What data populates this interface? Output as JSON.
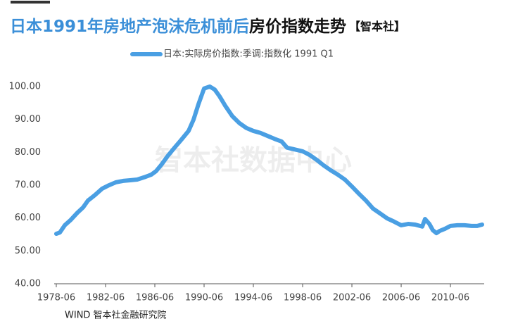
{
  "chart_data": {
    "type": "line",
    "title": "日本1991年房地产泡沫危机前后",
    "title_suffix": "房价指数走势",
    "brand": "【智本社】",
    "watermark": "智本社数据中心",
    "source": "WIND 智本社金融研究院",
    "series": [
      {
        "name": "日本:实际房价指数:季调:指数化 1991 Q1",
        "color": "#4a9fe3",
        "x": [
          1978.5,
          1978.79,
          1979.19,
          1979.64,
          1980.21,
          1980.67,
          1981.07,
          1981.64,
          1982.21,
          1982.79,
          1983.36,
          1983.93,
          1984.5,
          1985.07,
          1985.64,
          1986.21,
          1986.61,
          1987.07,
          1987.53,
          1988.1,
          1988.67,
          1989.24,
          1989.64,
          1990.04,
          1990.5,
          1990.96,
          1991.36,
          1991.76,
          1992.21,
          1992.79,
          1993.36,
          1993.93,
          1994.5,
          1995.07,
          1995.64,
          1996.21,
          1996.79,
          1997.24,
          1997.81,
          1998.5,
          1999.07,
          1999.64,
          2000.21,
          2000.79,
          2001.36,
          2001.93,
          2002.5,
          2003.07,
          2003.64,
          2004.21,
          2004.79,
          2005.36,
          2005.93,
          2006.5,
          2007.07,
          2007.64,
          2008.21,
          2008.44,
          2008.79,
          2009.07,
          2009.36,
          2009.64,
          2010.04,
          2010.5,
          2011.07,
          2011.64,
          2012.21,
          2012.67,
          2013.07
        ],
        "values": [
          55.2,
          55.6,
          57.8,
          59.3,
          61.6,
          63.2,
          65.3,
          67.0,
          68.9,
          70.0,
          70.9,
          71.3,
          71.5,
          71.7,
          72.4,
          73.2,
          74.3,
          76.4,
          78.8,
          81.4,
          83.9,
          86.5,
          89.9,
          94.6,
          99.4,
          100,
          99.1,
          97.0,
          94.2,
          91.0,
          88.9,
          87.4,
          86.5,
          85.9,
          85.0,
          84.1,
          83.3,
          81.4,
          80.9,
          80.3,
          79.2,
          77.7,
          76.0,
          74.5,
          73.2,
          71.7,
          69.6,
          67.4,
          65.3,
          62.9,
          61.4,
          59.9,
          58.9,
          57.8,
          58.2,
          58.0,
          57.4,
          59.7,
          58.2,
          56.3,
          55.4,
          56.1,
          56.7,
          57.6,
          57.8,
          57.8,
          57.6,
          57.6,
          58.0
        ]
      }
    ],
    "xlim": [
      1978.33,
      2013.24
    ],
    "xticks": [
      {
        "value": 1978.5,
        "label": "1978-06"
      },
      {
        "value": 1982.5,
        "label": "1982-06"
      },
      {
        "value": 1986.5,
        "label": "1986-06"
      },
      {
        "value": 1990.5,
        "label": "1990-06"
      },
      {
        "value": 1994.5,
        "label": "1994-06"
      },
      {
        "value": 1998.5,
        "label": "1998-06"
      },
      {
        "value": 2002.5,
        "label": "2002-06"
      },
      {
        "value": 2006.5,
        "label": "2006-06"
      },
      {
        "value": 2010.5,
        "label": "2010-06"
      }
    ],
    "ylim": [
      40,
      102
    ],
    "yticks": [
      {
        "value": 40,
        "label": "40.00"
      },
      {
        "value": 50,
        "label": "50.00"
      },
      {
        "value": 60,
        "label": "60.00"
      },
      {
        "value": 70,
        "label": "70.00"
      },
      {
        "value": 80,
        "label": "80.00"
      },
      {
        "value": 90,
        "label": "90.00"
      },
      {
        "value": 100,
        "label": "100.00"
      }
    ],
    "grid": false
  }
}
